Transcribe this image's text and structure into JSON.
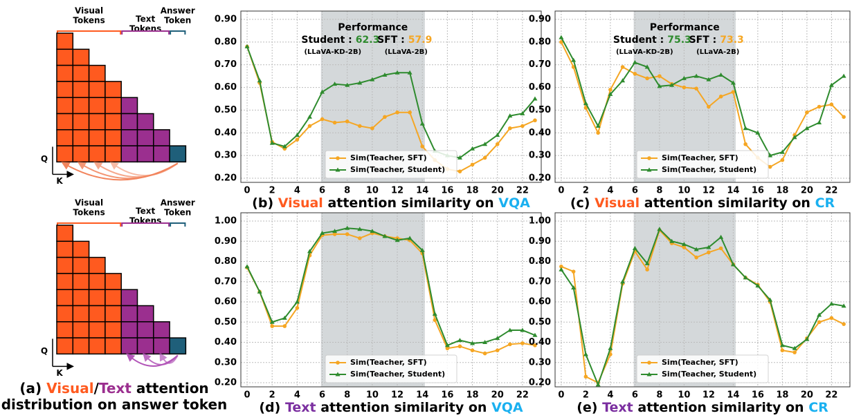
{
  "diagram": {
    "panels": [
      {
        "groups": [
          {
            "lines": [
              "Visual",
              "Tokens"
            ],
            "color": "#ff5a1f",
            "columns": 4
          },
          {
            "lines": [
              "Text",
              "Tokens"
            ],
            "color": "#9b2f8f",
            "columns": 3
          },
          {
            "lines": [
              "Answer",
              "Token"
            ],
            "color": "#1f5f7a",
            "columns": 1
          }
        ],
        "q_label": "Q",
        "k_label": "K",
        "arrow_color": "#f2845c"
      },
      {
        "groups": [
          {
            "lines": [
              "Visual",
              "Tokens"
            ],
            "color": "#ff5a1f",
            "columns": 4
          },
          {
            "lines": [
              "Text",
              "Tokens"
            ],
            "color": "#9b2f8f",
            "columns": 3
          },
          {
            "lines": [
              "Answer",
              "Token"
            ],
            "color": "#1f5f7a",
            "columns": 1
          }
        ],
        "q_label": "Q",
        "k_label": "K",
        "arrow_color": "#b255b8"
      }
    ],
    "caption": {
      "line1": [
        {
          "text": "(a) ",
          "color": "#000000"
        },
        {
          "text": "Visual",
          "color": "#ff5a1f"
        },
        {
          "text": "/",
          "color": "#000000"
        },
        {
          "text": "Text",
          "color": "#9b2f8f"
        },
        {
          "text": " attention",
          "color": "#000000"
        }
      ],
      "line2": "distribution on answer token"
    }
  },
  "chart_data": [
    {
      "type": "line",
      "title": [
        {
          "text": "(b) ",
          "color": "#000000"
        },
        {
          "text": "Visual",
          "color": "#ff5a1f"
        },
        {
          "text": " attention similarity on ",
          "color": "#000000"
        },
        {
          "text": "VQA",
          "color": "#1ab0f0"
        }
      ],
      "annotation": {
        "heading": "Performance",
        "student_label": "Student :",
        "student_score": 62.3,
        "sft_label": "SFT :",
        "sft_score": 57.9,
        "student_model": "(LLaVA-KD-2B)",
        "sft_model": "(LLaVA-2B)"
      },
      "x": [
        0,
        1,
        2,
        3,
        4,
        5,
        6,
        7,
        8,
        9,
        10,
        11,
        12,
        13,
        14,
        15,
        16,
        17,
        18,
        19,
        20,
        21,
        22,
        23
      ],
      "series": [
        {
          "name": "Sim(Teacher, SFT)",
          "color": "#f5a623",
          "marker": "o",
          "values": [
            0.78,
            0.62,
            0.36,
            0.33,
            0.37,
            0.43,
            0.46,
            0.445,
            0.45,
            0.43,
            0.42,
            0.47,
            0.49,
            0.49,
            0.34,
            0.28,
            0.24,
            0.23,
            0.26,
            0.29,
            0.35,
            0.42,
            0.43,
            0.455
          ]
        },
        {
          "name": "Sim(Teacher, Student)",
          "color": "#2e8b2e",
          "marker": "^",
          "values": [
            0.78,
            0.63,
            0.355,
            0.34,
            0.39,
            0.47,
            0.58,
            0.615,
            0.61,
            0.62,
            0.635,
            0.655,
            0.665,
            0.665,
            0.44,
            0.32,
            0.3,
            0.29,
            0.33,
            0.35,
            0.39,
            0.475,
            0.485,
            0.55
          ]
        }
      ],
      "xlim": [
        -0.5,
        23.5
      ],
      "xticks": [
        0,
        2,
        4,
        6,
        8,
        10,
        12,
        14,
        16,
        18,
        20,
        22
      ],
      "ylim": [
        0.2,
        0.9
      ],
      "yticks": [
        {
          "value": 0.2,
          "label": "0.20"
        },
        {
          "value": 0.3,
          "label": "0.30"
        },
        {
          "value": 0.4,
          "label": "0.40"
        },
        {
          "value": 0.5,
          "label": "0.50"
        },
        {
          "value": 0.6,
          "label": "0.60"
        },
        {
          "value": 0.7,
          "label": "0.70"
        },
        {
          "value": 0.8,
          "label": "0.80"
        },
        {
          "value": 0.9,
          "label": "0.90"
        }
      ],
      "shaded_span": [
        5.9,
        14.2
      ],
      "grid": true,
      "legend": "lower center"
    },
    {
      "type": "line",
      "title": [
        {
          "text": "(c) ",
          "color": "#000000"
        },
        {
          "text": "Visual",
          "color": "#ff5a1f"
        },
        {
          "text": " attention similarity on ",
          "color": "#000000"
        },
        {
          "text": "CR",
          "color": "#1ab0f0"
        }
      ],
      "annotation": {
        "heading": "Performance",
        "student_label": "Student :",
        "student_score": 75.3,
        "sft_label": "SFT :",
        "sft_score": 73.3,
        "student_model": "(LLaVA-KD-2B)",
        "sft_model": "(LLaVA-2B)"
      },
      "x": [
        0,
        1,
        2,
        3,
        4,
        5,
        6,
        7,
        8,
        9,
        10,
        11,
        12,
        13,
        14,
        15,
        16,
        17,
        18,
        19,
        20,
        21,
        22,
        23
      ],
      "series": [
        {
          "name": "Sim(Teacher, SFT)",
          "color": "#f5a623",
          "marker": "o",
          "values": [
            0.8,
            0.69,
            0.51,
            0.4,
            0.59,
            0.69,
            0.66,
            0.64,
            0.65,
            0.615,
            0.6,
            0.595,
            0.515,
            0.56,
            0.58,
            0.35,
            0.29,
            0.25,
            0.28,
            0.39,
            0.49,
            0.515,
            0.525,
            0.47
          ]
        },
        {
          "name": "Sim(Teacher, Student)",
          "color": "#2e8b2e",
          "marker": "^",
          "values": [
            0.82,
            0.72,
            0.53,
            0.43,
            0.57,
            0.63,
            0.71,
            0.69,
            0.605,
            0.61,
            0.64,
            0.65,
            0.635,
            0.655,
            0.62,
            0.42,
            0.4,
            0.3,
            0.315,
            0.38,
            0.42,
            0.445,
            0.61,
            0.65
          ]
        }
      ],
      "xlim": [
        -0.5,
        23.5
      ],
      "xticks": [
        0,
        2,
        4,
        6,
        8,
        10,
        12,
        14,
        16,
        18,
        20,
        22
      ],
      "ylim": [
        0.2,
        0.9
      ],
      "yticks": [
        {
          "value": 0.2,
          "label": "0.20"
        },
        {
          "value": 0.3,
          "label": "0.30"
        },
        {
          "value": 0.4,
          "label": "0.40"
        },
        {
          "value": 0.5,
          "label": "0.50"
        },
        {
          "value": 0.6,
          "label": "0.60"
        },
        {
          "value": 0.7,
          "label": "0.70"
        },
        {
          "value": 0.8,
          "label": "0.80"
        },
        {
          "value": 0.9,
          "label": "0.90"
        }
      ],
      "shaded_span": [
        5.9,
        14.2
      ],
      "grid": true,
      "legend": "lower center"
    },
    {
      "type": "line",
      "title": [
        {
          "text": "(d) ",
          "color": "#000000"
        },
        {
          "text": "Text",
          "color": "#7b2fa0"
        },
        {
          "text": " attention similarity on ",
          "color": "#000000"
        },
        {
          "text": "VQA",
          "color": "#1ab0f0"
        }
      ],
      "x": [
        0,
        1,
        2,
        3,
        4,
        5,
        6,
        7,
        8,
        9,
        10,
        11,
        12,
        13,
        14,
        15,
        16,
        17,
        18,
        19,
        20,
        21,
        22,
        23
      ],
      "series": [
        {
          "name": "Sim(Teacher, SFT)",
          "color": "#f5a623",
          "marker": "o",
          "values": [
            0.77,
            0.65,
            0.48,
            0.48,
            0.57,
            0.83,
            0.93,
            0.935,
            0.935,
            0.915,
            0.94,
            0.925,
            0.915,
            0.905,
            0.84,
            0.51,
            0.37,
            0.38,
            0.36,
            0.345,
            0.36,
            0.39,
            0.395,
            0.385
          ]
        },
        {
          "name": "Sim(Teacher, Student)",
          "color": "#2e8b2e",
          "marker": "^",
          "values": [
            0.775,
            0.65,
            0.5,
            0.52,
            0.6,
            0.85,
            0.94,
            0.95,
            0.965,
            0.96,
            0.95,
            0.925,
            0.905,
            0.915,
            0.855,
            0.54,
            0.385,
            0.41,
            0.395,
            0.4,
            0.42,
            0.46,
            0.46,
            0.435
          ]
        }
      ],
      "xlim": [
        -0.5,
        23.5
      ],
      "xticks": [
        0,
        2,
        4,
        6,
        8,
        10,
        12,
        14,
        16,
        18,
        20,
        22
      ],
      "ylim": [
        0.2,
        1.0
      ],
      "yticks": [
        {
          "value": 0.2,
          "label": "0.20"
        },
        {
          "value": 0.3,
          "label": "0.30"
        },
        {
          "value": 0.4,
          "label": "0.40"
        },
        {
          "value": 0.5,
          "label": "0.50"
        },
        {
          "value": 0.6,
          "label": "0.60"
        },
        {
          "value": 0.7,
          "label": "0.70"
        },
        {
          "value": 0.8,
          "label": "0.80"
        },
        {
          "value": 0.9,
          "label": "0.90"
        },
        {
          "value": 1.0,
          "label": "1.00"
        }
      ],
      "shaded_span": [
        5.9,
        14.2
      ],
      "grid": true,
      "legend": "lower center"
    },
    {
      "type": "line",
      "title": [
        {
          "text": "(e) ",
          "color": "#000000"
        },
        {
          "text": "Text",
          "color": "#7b2fa0"
        },
        {
          "text": " attention similarity on ",
          "color": "#000000"
        },
        {
          "text": "CR",
          "color": "#1ab0f0"
        }
      ],
      "x": [
        0,
        1,
        2,
        3,
        4,
        5,
        6,
        7,
        8,
        9,
        10,
        11,
        12,
        13,
        14,
        15,
        16,
        17,
        18,
        19,
        20,
        21,
        22,
        23
      ],
      "series": [
        {
          "name": "Sim(Teacher, SFT)",
          "color": "#f5a623",
          "marker": "o",
          "values": [
            0.775,
            0.75,
            0.23,
            0.2,
            0.34,
            0.69,
            0.85,
            0.76,
            0.955,
            0.89,
            0.87,
            0.82,
            0.845,
            0.865,
            0.785,
            0.72,
            0.685,
            0.6,
            0.36,
            0.35,
            0.42,
            0.5,
            0.52,
            0.49
          ]
        },
        {
          "name": "Sim(Teacher, Student)",
          "color": "#2e8b2e",
          "marker": "^",
          "values": [
            0.76,
            0.67,
            0.34,
            0.19,
            0.37,
            0.7,
            0.865,
            0.79,
            0.96,
            0.9,
            0.885,
            0.86,
            0.87,
            0.92,
            0.785,
            0.72,
            0.68,
            0.61,
            0.385,
            0.37,
            0.415,
            0.535,
            0.59,
            0.58
          ]
        }
      ],
      "xlim": [
        -0.5,
        23.5
      ],
      "xticks": [
        0,
        2,
        4,
        6,
        8,
        10,
        12,
        14,
        16,
        18,
        20,
        22
      ],
      "ylim": [
        0.2,
        1.0
      ],
      "yticks": [
        {
          "value": 0.2,
          "label": "0.20"
        },
        {
          "value": 0.3,
          "label": "0.30"
        },
        {
          "value": 0.4,
          "label": "0.40"
        },
        {
          "value": 0.5,
          "label": "0.50"
        },
        {
          "value": 0.6,
          "label": "0.60"
        },
        {
          "value": 0.7,
          "label": "0.70"
        },
        {
          "value": 0.8,
          "label": "0.80"
        },
        {
          "value": 0.9,
          "label": "0.90"
        },
        {
          "value": 1.0,
          "label": "1.00"
        }
      ],
      "shaded_span": [
        5.9,
        14.2
      ],
      "grid": true,
      "legend": "lower center"
    }
  ]
}
